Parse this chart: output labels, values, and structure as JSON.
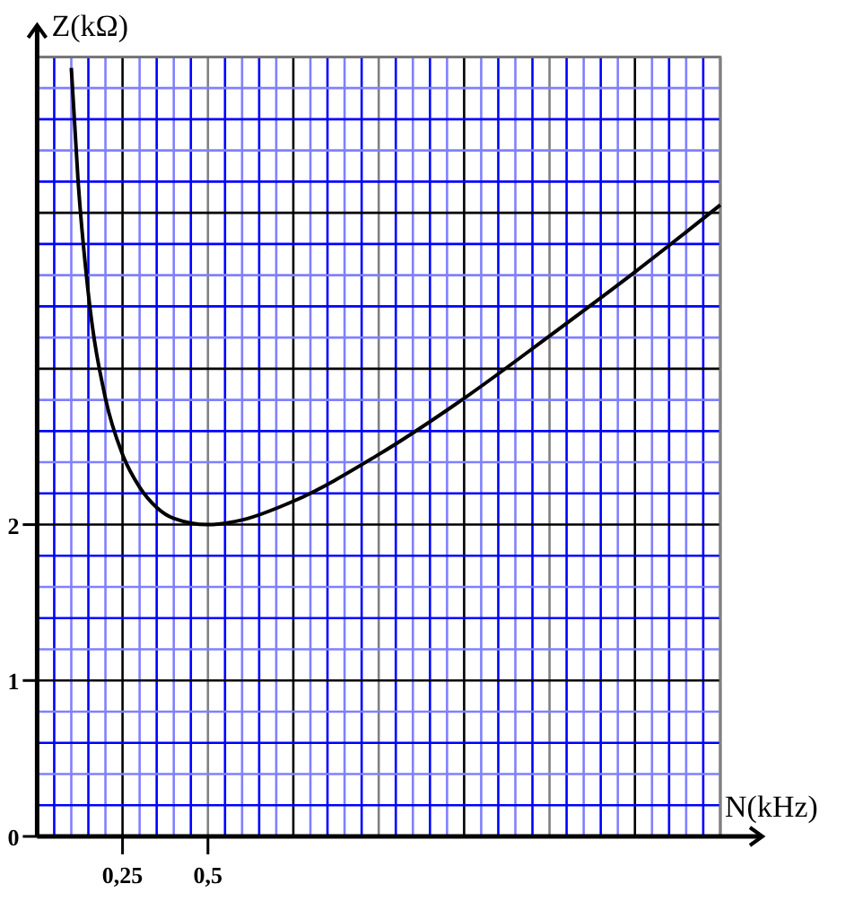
{
  "chart_data": {
    "type": "line",
    "xlabel": "N(kHz)",
    "ylabel": "Z(kΩ)",
    "x": [
      0.1,
      0.12,
      0.15,
      0.2,
      0.25,
      0.3,
      0.35,
      0.4,
      0.5,
      0.6,
      0.75,
      1.0,
      1.25,
      1.5,
      1.75,
      2.0
    ],
    "series": [
      {
        "color": "#000000",
        "values": [
          4.93,
          4.2,
          3.48,
          2.81,
          2.45,
          2.24,
          2.11,
          2.04,
          2.0,
          2.03,
          2.15,
          2.45,
          2.81,
          3.21,
          3.62,
          4.05
        ]
      }
    ],
    "xlim": [
      0,
      2
    ],
    "ylim": [
      0,
      5
    ],
    "xticks": [
      {
        "value": 0.05,
        "label": null
      },
      {
        "value": 0.1,
        "label": null
      },
      {
        "value": 0.15,
        "label": null
      },
      {
        "value": 0.2,
        "label": null
      },
      {
        "value": 0.25,
        "label": "0,25"
      },
      {
        "value": 0.3,
        "label": null
      },
      {
        "value": 0.35,
        "label": null
      },
      {
        "value": 0.4,
        "label": null
      },
      {
        "value": 0.45,
        "label": null
      },
      {
        "value": 0.5,
        "label": "0,5"
      },
      {
        "value": 0.55,
        "label": null
      },
      {
        "value": 0.6,
        "label": null
      },
      {
        "value": 0.65,
        "label": null
      },
      {
        "value": 0.7,
        "label": null
      },
      {
        "value": 0.75,
        "label": null
      },
      {
        "value": 0.8,
        "label": null
      },
      {
        "value": 0.85,
        "label": null
      },
      {
        "value": 0.9,
        "label": null
      },
      {
        "value": 0.95,
        "label": null
      },
      {
        "value": 1.0,
        "label": null
      },
      {
        "value": 1.05,
        "label": null
      },
      {
        "value": 1.1,
        "label": null
      },
      {
        "value": 1.15,
        "label": null
      },
      {
        "value": 1.2,
        "label": null
      },
      {
        "value": 1.25,
        "label": null
      },
      {
        "value": 1.3,
        "label": null
      },
      {
        "value": 1.35,
        "label": null
      },
      {
        "value": 1.4,
        "label": null
      },
      {
        "value": 1.45,
        "label": null
      },
      {
        "value": 1.5,
        "label": null
      },
      {
        "value": 1.55,
        "label": null
      },
      {
        "value": 1.6,
        "label": null
      },
      {
        "value": 1.65,
        "label": null
      },
      {
        "value": 1.7,
        "label": null
      },
      {
        "value": 1.75,
        "label": null
      },
      {
        "value": 1.8,
        "label": null
      },
      {
        "value": 1.85,
        "label": null
      },
      {
        "value": 1.9,
        "label": null
      },
      {
        "value": 1.95,
        "label": null
      },
      {
        "value": 2.0,
        "label": null
      }
    ],
    "yticks": [
      0,
      {
        "value": 0.2,
        "label": null
      },
      {
        "value": 0.4,
        "label": null
      },
      {
        "value": 0.6,
        "label": null
      },
      {
        "value": 0.8,
        "label": null
      },
      1,
      {
        "value": 1.2,
        "label": null
      },
      {
        "value": 1.4,
        "label": null
      },
      {
        "value": 1.6,
        "label": null
      },
      {
        "value": 1.8,
        "label": null
      },
      2,
      {
        "value": 2.2,
        "label": null
      },
      {
        "value": 2.4,
        "label": null
      },
      {
        "value": 2.6,
        "label": null
      },
      {
        "value": 2.8,
        "label": null
      },
      {
        "value": 3.0,
        "label": null
      },
      {
        "value": 3.2,
        "label": null
      },
      {
        "value": 3.4,
        "label": null
      },
      {
        "value": 3.6,
        "label": null
      },
      {
        "value": 3.8,
        "label": null
      },
      {
        "value": 4.0,
        "label": null
      },
      {
        "value": 4.2,
        "label": null
      },
      {
        "value": 4.4,
        "label": null
      },
      {
        "value": 4.6,
        "label": null
      },
      {
        "value": 4.8,
        "label": null
      },
      {
        "value": 5.0,
        "label": null
      }
    ],
    "grid": true,
    "marker": "none",
    "line_style": "solid"
  }
}
